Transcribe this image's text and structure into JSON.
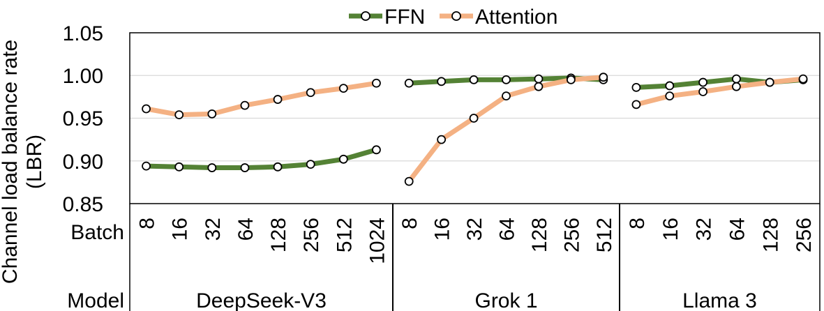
{
  "chart_data": {
    "type": "line",
    "legend": [
      "FFN",
      "Attention"
    ],
    "ylabel": [
      "Channel load balance rate",
      "(LBR)"
    ],
    "ylim": [
      0.85,
      1.05
    ],
    "yticks": [
      "1.05",
      "1.00",
      "0.95",
      "0.90",
      "0.85"
    ],
    "row_labels": {
      "batch": "Batch",
      "model": "Model"
    },
    "groups": [
      {
        "name": "DeepSeek-V3",
        "batches": [
          "8",
          "16",
          "32",
          "64",
          "128",
          "256",
          "512",
          "1024"
        ],
        "series": [
          {
            "name": "FFN",
            "values": [
              0.894,
              0.893,
              0.892,
              0.892,
              0.893,
              0.896,
              0.902,
              0.913
            ]
          },
          {
            "name": "Attention",
            "values": [
              0.961,
              0.954,
              0.955,
              0.965,
              0.972,
              0.98,
              0.985,
              0.991
            ]
          }
        ]
      },
      {
        "name": "Grok 1",
        "batches": [
          "8",
          "16",
          "32",
          "64",
          "128",
          "256",
          "512"
        ],
        "series": [
          {
            "name": "FFN",
            "values": [
              0.991,
              0.993,
              0.995,
              0.995,
              0.996,
              0.997,
              0.995
            ]
          },
          {
            "name": "Attention",
            "values": [
              0.876,
              0.925,
              0.95,
              0.976,
              0.987,
              0.995,
              0.998
            ]
          }
        ]
      },
      {
        "name": "Llama 3",
        "batches": [
          "8",
          "16",
          "32",
          "64",
          "128",
          "256"
        ],
        "series": [
          {
            "name": "FFN",
            "values": [
              0.986,
              0.988,
              0.992,
              0.996,
              0.992,
              0.995
            ]
          },
          {
            "name": "Attention",
            "values": [
              0.966,
              0.976,
              0.981,
              0.987,
              0.992,
              0.996
            ]
          }
        ]
      }
    ],
    "colors": {
      "FFN": "#548235",
      "Attention": "#F4B183",
      "axis": "#000000",
      "grid": "#d9d9d9"
    }
  }
}
